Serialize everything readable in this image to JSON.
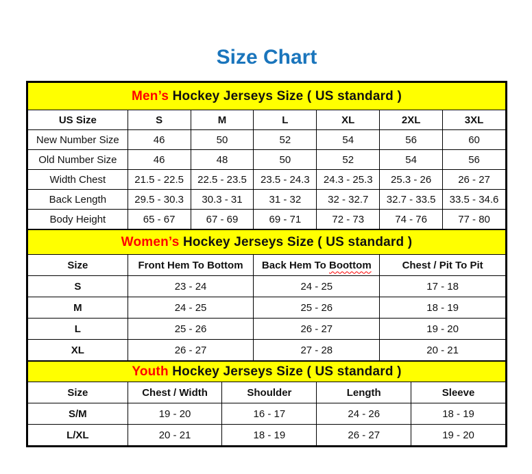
{
  "page": {
    "title": "Size Chart",
    "title_color": "#1a75bc",
    "accent_yellow": "#ffff00",
    "accent_red": "#ff0000",
    "border_color": "#000000"
  },
  "sections": [
    {
      "id": "mens",
      "header": {
        "highlight": "Men’s",
        "rest": " Hockey Jerseys Size ( US standard )"
      },
      "columns": [
        "US Size",
        "S",
        "M",
        "L",
        "XL",
        "2XL",
        "3XL"
      ],
      "rows": [
        {
          "label": "New Number Size",
          "values": [
            "46",
            "50",
            "52",
            "54",
            "56",
            "60"
          ]
        },
        {
          "label": "Old Number Size",
          "values": [
            "46",
            "48",
            "50",
            "52",
            "54",
            "56"
          ]
        },
        {
          "label": "Width Chest",
          "values": [
            "21.5 - 22.5",
            "22.5 - 23.5",
            "23.5 - 24.3",
            "24.3 - 25.3",
            "25.3 - 26",
            "26 - 27"
          ]
        },
        {
          "label": "Back Length",
          "values": [
            "29.5 - 30.3",
            "30.3 - 31",
            "31 - 32",
            "32 - 32.7",
            "32.7 - 33.5",
            "33.5 - 34.6"
          ]
        },
        {
          "label": "Body Height",
          "values": [
            "65 - 67",
            "67 - 69",
            "69 - 71",
            "72 - 73",
            "74 - 76",
            "77 - 80"
          ]
        }
      ]
    },
    {
      "id": "womens",
      "header": {
        "highlight": "Women’s",
        "rest": " Hockey Jerseys Size ( US standard )"
      },
      "columns": [
        "Size",
        "Front Hem To Bottom",
        {
          "prefix": "Back Hem To ",
          "squiggle": "Boottom"
        },
        "Chest / Pit To Pit"
      ],
      "rows": [
        {
          "label": "S",
          "values": [
            "23 - 24",
            "24 - 25",
            "17 - 18"
          ]
        },
        {
          "label": "M",
          "values": [
            "24 - 25",
            "25 - 26",
            "18 - 19"
          ]
        },
        {
          "label": "L",
          "values": [
            "25 - 26",
            "26 - 27",
            "19 - 20"
          ]
        },
        {
          "label": "XL",
          "values": [
            "26 - 27",
            "27 - 28",
            "20 - 21"
          ]
        }
      ]
    },
    {
      "id": "youth",
      "header": {
        "highlight": "Youth",
        "rest": " Hockey Jerseys Size ( US standard )"
      },
      "columns": [
        "Size",
        "Chest / Width",
        "Shoulder",
        "Length",
        "Sleeve"
      ],
      "rows": [
        {
          "label": "S/M",
          "values": [
            "19 - 20",
            "16 - 17",
            "24 - 26",
            "18 - 19"
          ]
        },
        {
          "label": "L/XL",
          "values": [
            "20 - 21",
            "18 - 19",
            "26 - 27",
            "19 - 20"
          ]
        }
      ]
    }
  ]
}
